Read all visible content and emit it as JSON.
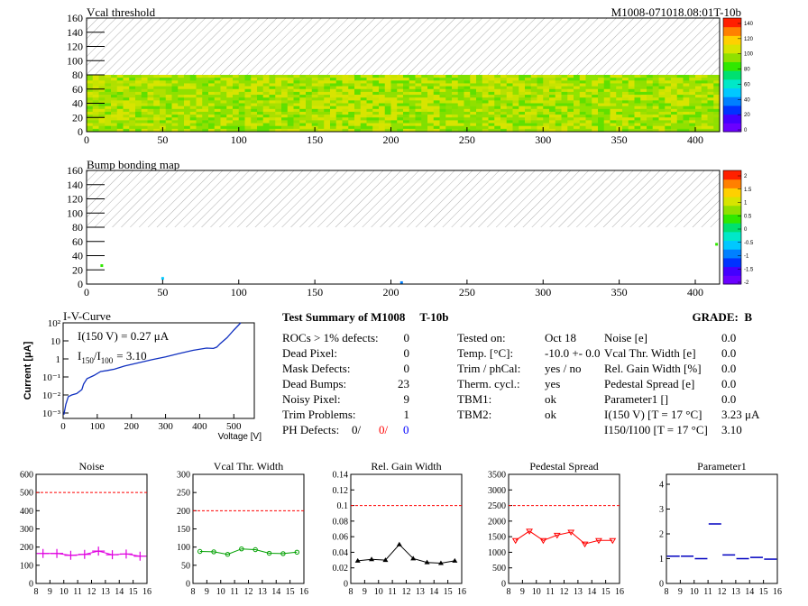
{
  "header": {
    "title": "M1008-071018.08:01T-10b"
  },
  "maps": [
    {
      "title": "Vcal threshold",
      "palette": [
        "#6a00ff",
        "#4400ff",
        "#0033ff",
        "#0080ff",
        "#00c8ff",
        "#00e8c8",
        "#00e070",
        "#30e800",
        "#90e000",
        "#d8e400",
        "#ffd000",
        "#ff8000",
        "#ff2000"
      ],
      "z_ticks": [
        "140",
        "120",
        "100",
        "80",
        "60",
        "40",
        "20",
        "0"
      ],
      "x_ticks": [
        "0",
        "50",
        "100",
        "150",
        "200",
        "250",
        "300",
        "350",
        "400"
      ],
      "y_ticks": [
        "0",
        "20",
        "40",
        "60",
        "80",
        "100",
        "120",
        "140",
        "160"
      ]
    },
    {
      "title": "Bump bonding map",
      "palette": [
        "#6a00ff",
        "#4400ff",
        "#0033ff",
        "#0080ff",
        "#00c8ff",
        "#00e8c8",
        "#00e070",
        "#30e800",
        "#90e000",
        "#d8e400",
        "#ffd000",
        "#ff8000",
        "#ff2000"
      ],
      "z_ticks": [
        "2",
        "1.5",
        "1",
        "0.5",
        "0",
        "-0.5",
        "-1",
        "-1.5",
        "-2"
      ],
      "x_ticks": [
        "0",
        "50",
        "100",
        "150",
        "200",
        "250",
        "300",
        "350",
        "400"
      ],
      "y_ticks": [
        "0",
        "20",
        "40",
        "60",
        "80",
        "100",
        "120",
        "140",
        "160"
      ]
    }
  ],
  "iv": {
    "title": "I-V-Curve",
    "ylabel": "Current [μA]",
    "xlabel": "Voltage [V]",
    "x_ticks": [
      "0",
      "100",
      "200",
      "300",
      "400",
      "500"
    ],
    "y_ticks": [
      "10⁻³",
      "10⁻²",
      "10⁻¹",
      "1",
      "10",
      "10²"
    ],
    "annot1": "I(150 V) = 0.27 μA",
    "annot2_main": "I",
    "annot2_sub1": "150",
    "annot2_slash": "/I",
    "annot2_sub2": "100",
    "annot2_val": "=  3.10"
  },
  "summary": {
    "title": "Test Summary of M1008     T-10b",
    "grade": "GRADE:  B",
    "col1": [
      {
        "label": "ROCs > 1% defects:",
        "value": "0"
      },
      {
        "label": "Dead Pixel:",
        "value": "0"
      },
      {
        "label": "Mask Defects:",
        "value": "0"
      },
      {
        "label": "Dead Bumps:",
        "value": "23"
      },
      {
        "label": "Noisy Pixel:",
        "value": "9"
      },
      {
        "label": "Trim Problems:",
        "value": "1"
      }
    ],
    "ph_label": "PH Defects:",
    "ph_values": [
      "0/",
      "0/",
      "0"
    ],
    "ph_colors": [
      "#000000",
      "#ff0000",
      "#0000ff"
    ],
    "col2": [
      {
        "label": "Tested on:",
        "value": "Oct 18"
      },
      {
        "label": "Temp. [°C]:",
        "value": "-10.0 +- 0.0"
      },
      {
        "label": "Trim / phCal:",
        "value": "yes / no"
      },
      {
        "label": "Therm. cycl.:",
        "value": "yes"
      },
      {
        "label": "TBM1:",
        "value": "ok"
      },
      {
        "label": "TBM2:",
        "value": "ok"
      }
    ],
    "col3": [
      {
        "label": "Noise [e]",
        "value": "0.0"
      },
      {
        "label": "Vcal Thr. Width [e]",
        "value": "0.0"
      },
      {
        "label": "Rel. Gain Width [%]",
        "value": "0.0"
      },
      {
        "label": "Pedestal Spread [e]",
        "value": "0.0"
      },
      {
        "label": "Parameter1 []",
        "value": "0.0"
      },
      {
        "label": "I(150 V) [T = 17 °C]",
        "value": "3.23 μA"
      },
      {
        "label": "I150/I100 [T = 17 °C]",
        "value": "3.10"
      }
    ]
  },
  "chart_data": [
    {
      "type": "heatmap",
      "title": "Vcal threshold",
      "xlim": [
        0,
        416
      ],
      "ylim": [
        0,
        160
      ],
      "zlim": [
        0,
        140
      ],
      "filled_rows": [
        0,
        80
      ],
      "typical_value": 75,
      "grid": false
    },
    {
      "type": "heatmap",
      "title": "Bump bonding map",
      "xlim": [
        0,
        416
      ],
      "ylim": [
        0,
        160
      ],
      "zlim": [
        -2,
        2
      ],
      "filled_rows": [
        0,
        80
      ],
      "grid": false
    },
    {
      "type": "line",
      "title": "I-V-Curve",
      "xlabel": "Voltage [V]",
      "ylabel": "Current [μA]",
      "log_y": true,
      "xlim": [
        0,
        560
      ],
      "ylim": [
        0.0005,
        100
      ],
      "x": [
        2,
        8,
        15,
        25,
        40,
        55,
        60,
        70,
        90,
        110,
        130,
        150,
        180,
        220,
        260,
        300,
        340,
        380,
        420,
        440,
        450,
        460,
        480,
        500,
        520
      ],
      "y": [
        0.0008,
        0.003,
        0.008,
        0.01,
        0.012,
        0.02,
        0.04,
        0.08,
        0.12,
        0.2,
        0.23,
        0.27,
        0.4,
        0.6,
        0.9,
        1.3,
        2.0,
        3.0,
        4.0,
        3.8,
        4.5,
        7,
        15,
        40,
        100
      ]
    },
    {
      "type": "line",
      "title": "Noise",
      "x": [
        8.5,
        9.5,
        10.5,
        11.5,
        12.5,
        13.5,
        14.5,
        15.5
      ],
      "y": [
        165,
        165,
        155,
        160,
        178,
        158,
        162,
        150
      ],
      "xlim": [
        8,
        16
      ],
      "ylim": [
        0,
        600
      ],
      "reference": 500,
      "x_ticks": [
        "8",
        "9",
        "10",
        "11",
        "12",
        "13",
        "14",
        "15",
        "16"
      ],
      "y_ticks": [
        "0",
        "100",
        "200",
        "300",
        "400",
        "500",
        "600"
      ],
      "color": "#e000e0",
      "marker": "cross"
    },
    {
      "type": "line",
      "title": "Vcal Thr. Width",
      "x": [
        8.5,
        9.5,
        10.5,
        11.5,
        12.5,
        13.5,
        14.5,
        15.5
      ],
      "y": [
        88,
        87,
        80,
        95,
        93,
        83,
        82,
        86
      ],
      "xlim": [
        8,
        16
      ],
      "ylim": [
        0,
        300
      ],
      "reference": 200,
      "x_ticks": [
        "8",
        "9",
        "10",
        "11",
        "12",
        "13",
        "14",
        "15",
        "16"
      ],
      "y_ticks": [
        "0",
        "50",
        "100",
        "150",
        "200",
        "250",
        "300"
      ],
      "color": "#00a000",
      "marker": "circle"
    },
    {
      "type": "line",
      "title": "Rel. Gain Width",
      "x": [
        8.5,
        9.5,
        10.5,
        11.5,
        12.5,
        13.5,
        14.5,
        15.5
      ],
      "y": [
        0.029,
        0.031,
        0.03,
        0.05,
        0.032,
        0.027,
        0.026,
        0.029
      ],
      "xlim": [
        8,
        16
      ],
      "ylim": [
        0,
        0.14
      ],
      "reference": 0.1,
      "x_ticks": [
        "8",
        "9",
        "10",
        "11",
        "12",
        "13",
        "14",
        "15",
        "16"
      ],
      "y_ticks": [
        "0",
        "0.02",
        "0.04",
        "0.06",
        "0.08",
        "0.1",
        "0.12",
        "0.14"
      ],
      "color": "#000000",
      "marker": "triangle"
    },
    {
      "type": "line",
      "title": "Pedestal Spread",
      "x": [
        8.5,
        9.5,
        10.5,
        11.5,
        12.5,
        13.5,
        14.5,
        15.5
      ],
      "y": [
        1380,
        1680,
        1380,
        1550,
        1650,
        1270,
        1380,
        1380
      ],
      "xlim": [
        8,
        16
      ],
      "ylim": [
        0,
        3500
      ],
      "reference": 2500,
      "x_ticks": [
        "8",
        "9",
        "10",
        "11",
        "12",
        "13",
        "14",
        "15",
        "16"
      ],
      "y_ticks": [
        "0",
        "500",
        "1000",
        "1500",
        "2000",
        "2500",
        "3000",
        "3500"
      ],
      "color": "#ff0000",
      "marker": "triangle-down"
    },
    {
      "type": "scatter",
      "title": "Parameter1",
      "x": [
        8.5,
        9.5,
        10.5,
        11.5,
        12.5,
        13.5,
        14.5,
        15.5
      ],
      "y": [
        1.1,
        1.1,
        1.0,
        2.4,
        1.15,
        1.0,
        1.05,
        0.98
      ],
      "xlim": [
        8,
        16
      ],
      "ylim": [
        0,
        4.4
      ],
      "x_ticks": [
        "8",
        "9",
        "10",
        "11",
        "12",
        "13",
        "14",
        "15",
        "16"
      ],
      "y_ticks": [
        "0",
        "1",
        "2",
        "3",
        "4"
      ],
      "color": "#0000c0",
      "marker": "hbar"
    }
  ]
}
